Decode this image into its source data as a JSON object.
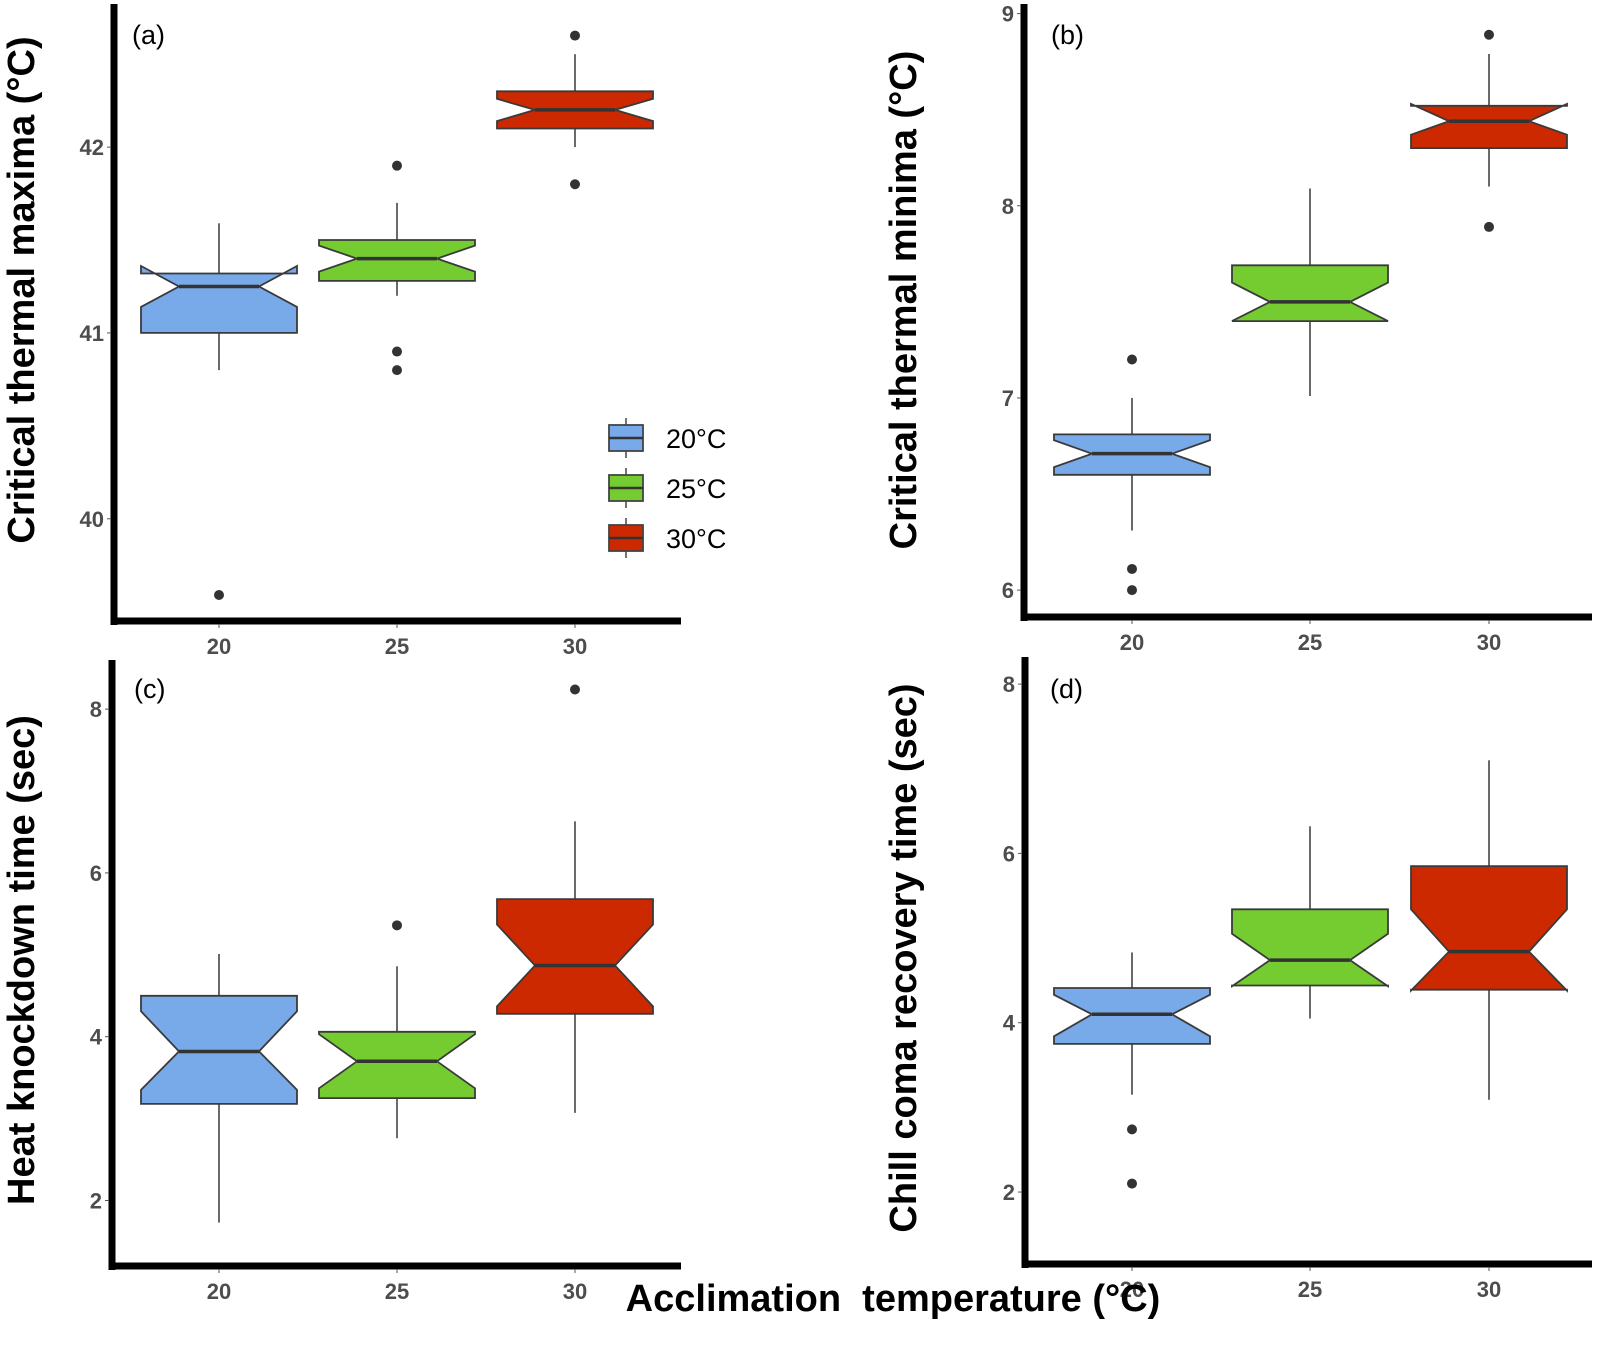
{
  "chart_data": {
    "type": "boxplot",
    "layout": "2x2 grid",
    "shared_xlabel": "Acclimation  temperature (°C)",
    "categories": [
      "20",
      "25",
      "30"
    ],
    "group_colors": {
      "20": "#78a9e8",
      "25": "#74cc30",
      "30": "#cc2900"
    },
    "legend": {
      "panel": "a",
      "placement": "bottom-right",
      "entries": [
        {
          "label": "20°C",
          "group": "20"
        },
        {
          "label": "25°C",
          "group": "25"
        },
        {
          "label": "30°C",
          "group": "30"
        }
      ]
    },
    "panels": [
      {
        "id": "a",
        "tag": "(a)",
        "ylabel": "Critical thermal maxima (°C)",
        "yticks": [
          40,
          41,
          42
        ],
        "ylim": [
          39.45,
          42.77
        ],
        "boxes": [
          {
            "group": "20",
            "whisker_low": 40.8,
            "q1": 41.0,
            "median": 41.25,
            "q3": 41.32,
            "whisker_high": 41.59,
            "notch": [
              41.14,
              41.36
            ],
            "outliers": [
              39.59
            ]
          },
          {
            "group": "25",
            "whisker_low": 41.2,
            "q1": 41.28,
            "median": 41.4,
            "q3": 41.5,
            "whisker_high": 41.7,
            "notch": [
              41.33,
              41.47
            ],
            "outliers": [
              41.9,
              40.9,
              40.8
            ]
          },
          {
            "group": "30",
            "whisker_low": 42.0,
            "q1": 42.1,
            "median": 42.2,
            "q3": 42.3,
            "whisker_high": 42.5,
            "notch": [
              42.14,
              42.26
            ],
            "outliers": [
              42.6,
              41.8
            ]
          }
        ]
      },
      {
        "id": "b",
        "tag": "(b)",
        "ylabel": "Critical thermal minima (°C)",
        "yticks": [
          6,
          7,
          8,
          9
        ],
        "ylim": [
          5.86,
          9.05
        ],
        "boxes": [
          {
            "group": "20",
            "whisker_low": 6.31,
            "q1": 6.6,
            "median": 6.71,
            "q3": 6.81,
            "whisker_high": 7.0,
            "notch": [
              6.64,
              6.78
            ],
            "outliers": [
              7.2,
              6.11,
              6.0
            ]
          },
          {
            "group": "25",
            "whisker_low": 7.01,
            "q1": 7.4,
            "median": 7.5,
            "q3": 7.69,
            "whisker_high": 8.09,
            "notch": [
              7.4,
              7.6
            ],
            "outliers": []
          },
          {
            "group": "30",
            "whisker_low": 8.1,
            "q1": 8.3,
            "median": 8.44,
            "q3": 8.52,
            "whisker_high": 8.79,
            "notch": [
              8.37,
              8.53
            ],
            "outliers": [
              8.89,
              7.89
            ]
          }
        ]
      },
      {
        "id": "c",
        "tag": "(c)",
        "ylabel": "Heat knockdown time (sec)",
        "yticks": [
          2,
          4,
          6,
          8
        ],
        "ylim": [
          1.2,
          8.6
        ],
        "boxes": [
          {
            "group": "20",
            "whisker_low": 1.73,
            "q1": 3.18,
            "median": 3.82,
            "q3": 4.5,
            "whisker_high": 5.01,
            "notch": [
              3.35,
              4.31
            ],
            "outliers": []
          },
          {
            "group": "25",
            "whisker_low": 2.76,
            "q1": 3.25,
            "median": 3.7,
            "q3": 4.06,
            "whisker_high": 4.86,
            "notch": [
              3.37,
              4.03
            ],
            "outliers": [
              5.36
            ]
          },
          {
            "group": "30",
            "whisker_low": 3.07,
            "q1": 4.28,
            "median": 4.87,
            "q3": 5.68,
            "whisker_high": 6.63,
            "notch": [
              4.37,
              5.37
            ],
            "outliers": [
              8.24
            ]
          }
        ]
      },
      {
        "id": "d",
        "tag": "(d)",
        "ylabel": "Chill coma recovery time (sec)",
        "yticks": [
          2,
          4,
          6,
          8
        ],
        "ylim": [
          1.15,
          8.32
        ],
        "boxes": [
          {
            "group": "20",
            "whisker_low": 3.15,
            "q1": 3.75,
            "median": 4.1,
            "q3": 4.41,
            "whisker_high": 4.83,
            "notch": [
              3.84,
              4.33
            ],
            "outliers": [
              2.74,
              2.1
            ]
          },
          {
            "group": "25",
            "whisker_low": 4.05,
            "q1": 4.44,
            "median": 4.74,
            "q3": 5.34,
            "whisker_high": 6.32,
            "notch": [
              4.43,
              5.05
            ],
            "outliers": []
          },
          {
            "group": "30",
            "whisker_low": 3.09,
            "q1": 4.39,
            "median": 4.84,
            "q3": 5.85,
            "whisker_high": 7.1,
            "notch": [
              4.38,
              5.34
            ],
            "outliers": []
          }
        ]
      }
    ]
  }
}
